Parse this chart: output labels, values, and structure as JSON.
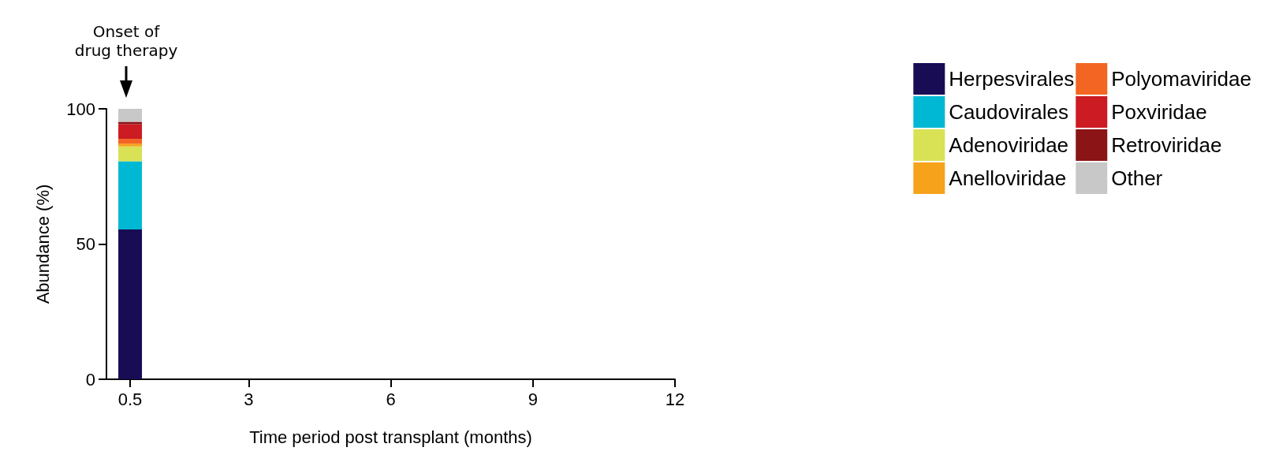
{
  "chart_data": {
    "type": "bar",
    "stacked": true,
    "xlabel": "Time period post transplant (months)",
    "ylabel": "Abundance (%)",
    "x": [
      0.5
    ],
    "xlim": [
      0,
      12
    ],
    "xticks": [
      0.5,
      3,
      6,
      9,
      12
    ],
    "ylim": [
      0,
      100
    ],
    "yticks": [
      0,
      50,
      100
    ],
    "grid": false,
    "legend": "right",
    "annotations": [
      "Onset of\ndrug therapy"
    ],
    "series": [
      {
        "name": "Herpesvirales",
        "color": "#180c55",
        "values": [
          55.4
        ]
      },
      {
        "name": "Caudovirales",
        "color": "#00b8d4",
        "values": [
          25.2
        ]
      },
      {
        "name": "Adenoviridae",
        "color": "#d9e155",
        "values": [
          5.5
        ]
      },
      {
        "name": "Anelloviridae",
        "color": "#f7a21b",
        "values": [
          1.0
        ]
      },
      {
        "name": "Polyomaviridae",
        "color": "#f26522",
        "values": [
          1.8
        ]
      },
      {
        "name": "Poxviridae",
        "color": "#cc1b22",
        "values": [
          5.4
        ]
      },
      {
        "name": "Retroviridae",
        "color": "#8b1416",
        "values": [
          0.9
        ]
      },
      {
        "name": "Other",
        "color": "#c8c8c8",
        "values": [
          4.8
        ]
      }
    ]
  }
}
